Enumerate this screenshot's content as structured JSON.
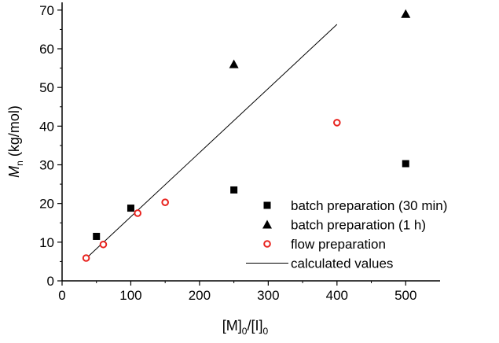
{
  "chart_data": {
    "type": "scatter",
    "title": "",
    "xlabel": "[M]0/[I]0",
    "ylabel": "Mn (kg/mol)",
    "xlabel_parts": {
      "a": "[M]",
      "a_sub": "0",
      "b": "/[I]",
      "b_sub": "0"
    },
    "ylabel_parts": {
      "main": "M",
      "sub": "n",
      "unit": " (kg/mol)"
    },
    "xlim": [
      0,
      550
    ],
    "ylim": [
      0,
      72
    ],
    "xticks": [
      0,
      100,
      200,
      300,
      400,
      500
    ],
    "yticks": [
      0,
      10,
      20,
      30,
      40,
      50,
      60,
      70
    ],
    "legend_position": "bottom-right",
    "series": [
      {
        "name": "batch preparation (30 min)",
        "marker": "square",
        "color": "#000000",
        "points": [
          [
            50,
            11.5
          ],
          [
            100,
            18.8
          ],
          [
            250,
            23.5
          ],
          [
            500,
            30.3
          ]
        ]
      },
      {
        "name": "batch preparation (1 h)",
        "marker": "triangle",
        "color": "#000000",
        "points": [
          [
            250,
            56.0
          ],
          [
            500,
            69.0
          ]
        ]
      },
      {
        "name": "flow preparation",
        "marker": "circle-open",
        "color": "#e8231e",
        "points": [
          [
            35,
            5.9
          ],
          [
            60,
            9.4
          ],
          [
            110,
            17.5
          ],
          [
            150,
            20.3
          ],
          [
            400,
            40.9
          ]
        ]
      },
      {
        "name": "calculated values",
        "marker": "line",
        "color": "#000000",
        "points": [
          [
            35,
            5.8
          ],
          [
            400,
            66.3
          ]
        ]
      }
    ]
  }
}
